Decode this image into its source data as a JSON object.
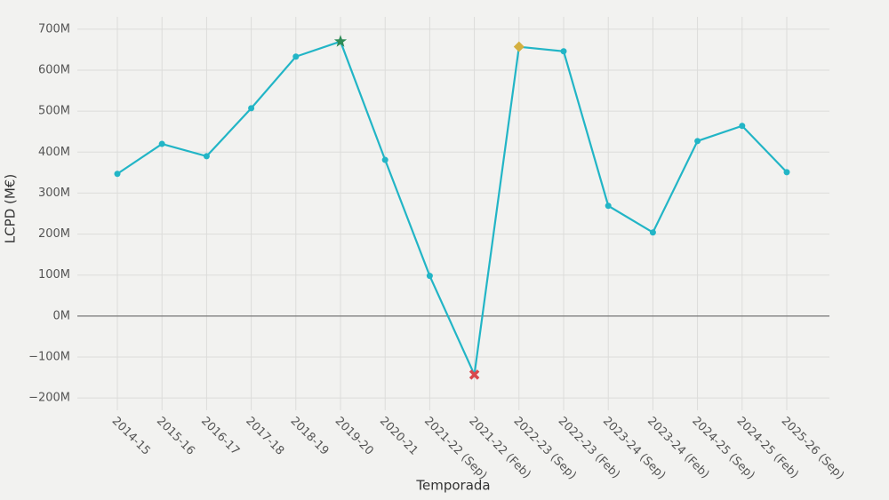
{
  "chart_data": {
    "type": "line",
    "x_label": "Temporada",
    "y_label": "LCPD (M€)",
    "categories": [
      "2014-15",
      "2015-16",
      "2016-17",
      "2017-18",
      "2018-19",
      "2019-20",
      "2020-21",
      "2021-22 (Sep)",
      "2021-22 (Feb)",
      "2022-23 (Sep)",
      "2022-23 (Feb)",
      "2023-24 (Sep)",
      "2023-24 (Feb)",
      "2024-25 (Sep)",
      "2024-25 (Feb)",
      "2025-26 (Sep)"
    ],
    "series": [
      {
        "color": "#22b5c6",
        "values": [
          347,
          420,
          390,
          507,
          633,
          670,
          381,
          98,
          -143,
          657,
          646,
          269,
          204,
          427,
          464,
          351
        ],
        "markers": [
          "circle",
          "circle",
          "circle",
          "circle",
          "circle",
          "star",
          "circle",
          "circle",
          "cross",
          "diamond",
          "circle",
          "circle",
          "circle",
          "circle",
          "circle",
          "circle"
        ],
        "marker_colors": [
          "#22b5c6",
          "#22b5c6",
          "#22b5c6",
          "#22b5c6",
          "#22b5c6",
          "#2e8b57",
          "#22b5c6",
          "#22b5c6",
          "#d9484c",
          "#d4b040",
          "#22b5c6",
          "#22b5c6",
          "#22b5c6",
          "#22b5c6",
          "#22b5c6",
          "#22b5c6"
        ]
      }
    ],
    "ylim": [
      -230,
      730
    ],
    "yticks": [
      {
        "value": -200,
        "label": "−200M"
      },
      {
        "value": -100,
        "label": "−100M"
      },
      {
        "value": 0,
        "label": "0M"
      },
      {
        "value": 100,
        "label": "100M"
      },
      {
        "value": 200,
        "label": "200M"
      },
      {
        "value": 300,
        "label": "300M"
      },
      {
        "value": 400,
        "label": "400M"
      },
      {
        "value": 500,
        "label": "500M"
      },
      {
        "value": 600,
        "label": "600M"
      },
      {
        "value": 700,
        "label": "700M"
      }
    ],
    "grid": true
  }
}
